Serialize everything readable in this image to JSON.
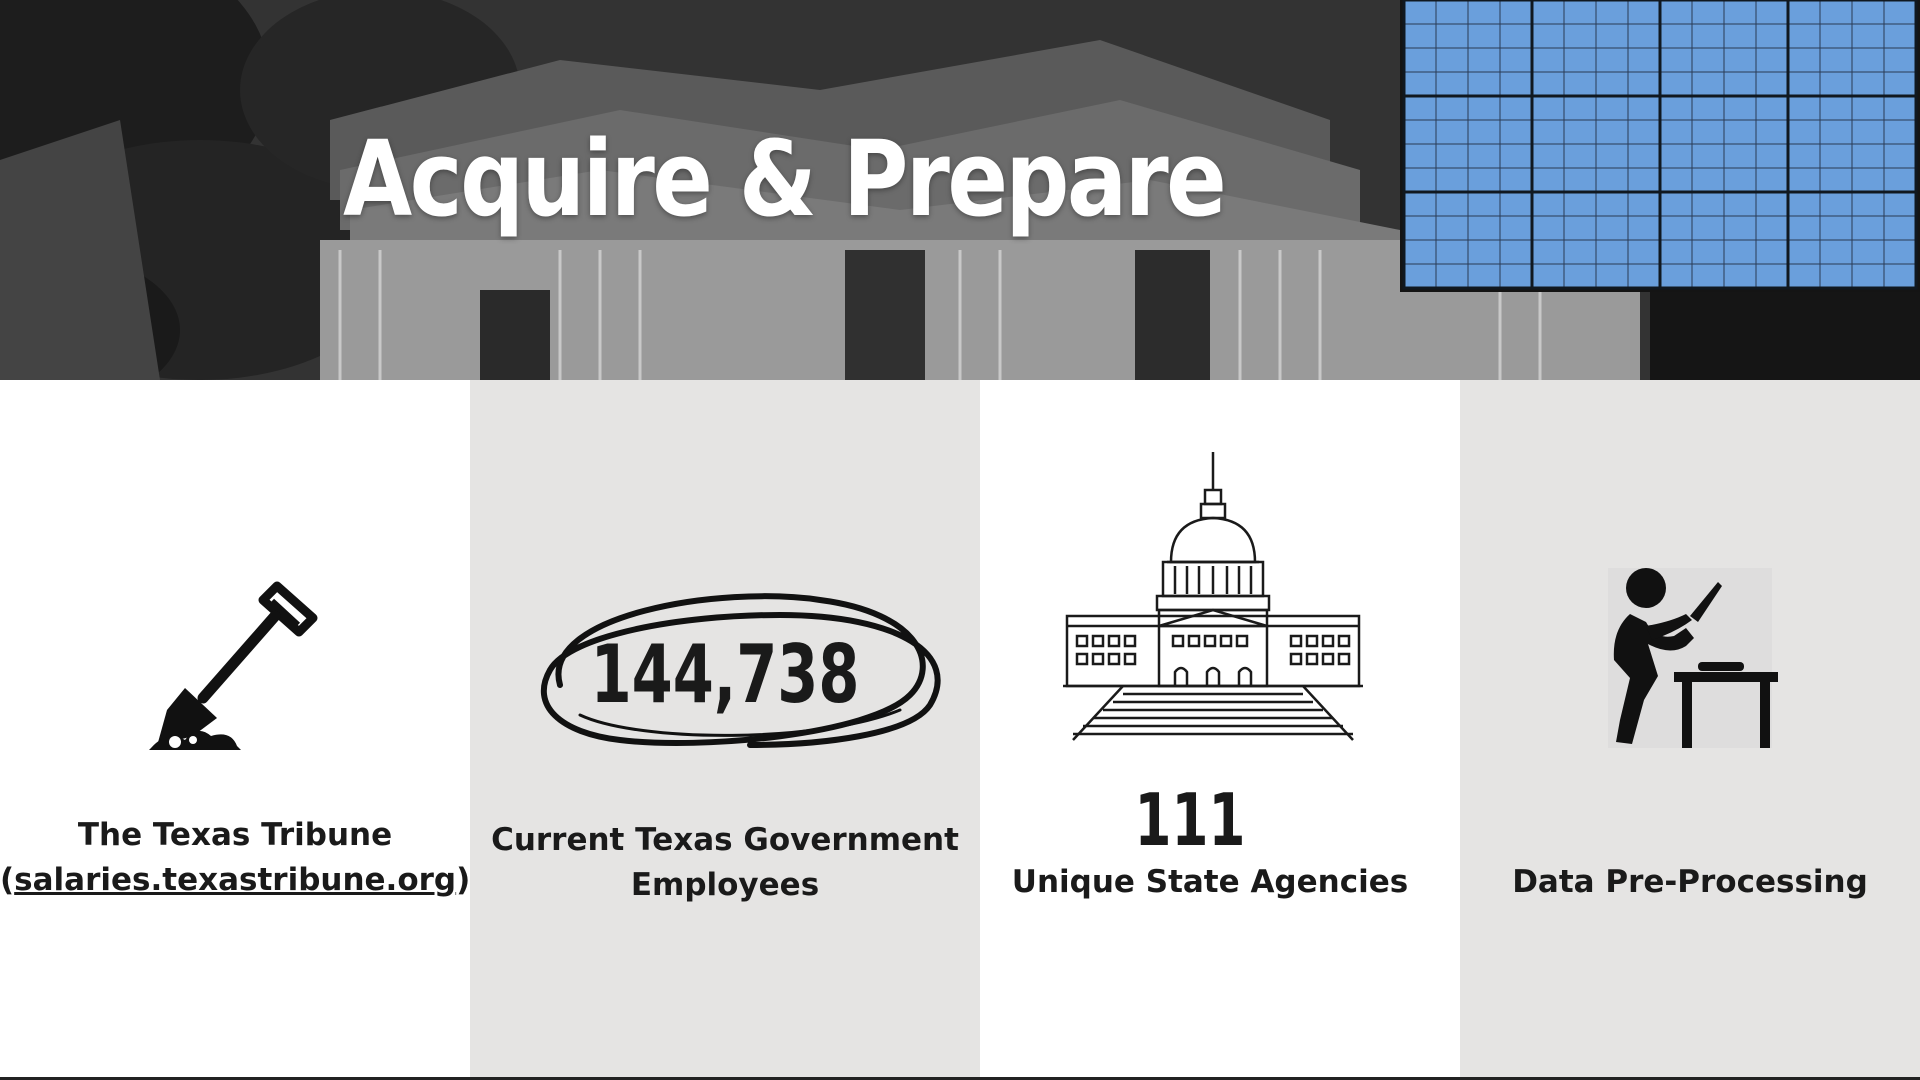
{
  "title": "Acquire & Prepare",
  "columns": [
    {
      "icon": "shovel-icon",
      "line1": "The Texas Tribune",
      "open_paren": "(",
      "link": "salaries.texastribune.org",
      "close_paren": ")"
    },
    {
      "number": "144,738",
      "line1": "Current Texas Government",
      "line2": "Employees"
    },
    {
      "icon": "capitol-building-icon",
      "number": "111",
      "line1": "Unique State Agencies"
    },
    {
      "icon": "person-chopping-icon",
      "line1": "Data Pre-Processing"
    }
  ],
  "colors": {
    "grid_fill": "#6a9fdc",
    "grid_line": "#1f2a3a",
    "panel_gray": "#e5e4e3",
    "text": "#1a1a1a"
  }
}
